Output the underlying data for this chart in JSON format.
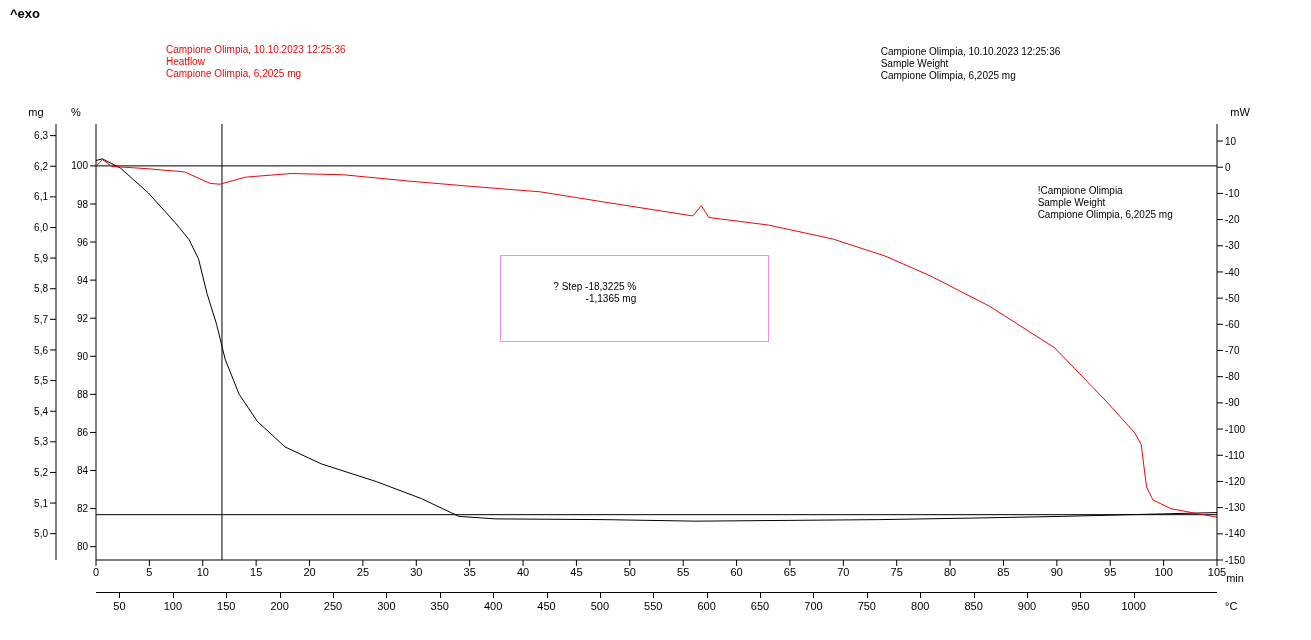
{
  "chart_data": {
    "type": "line",
    "annotations": [
      "^exo",
      "Campione Olimpia, 10.10.2023 12:25:36\nHeatflow\nCampione Olimpia, 6,2025 mg",
      "Campione Olimpia, 10.10.2023 12:25:36\nSample Weight\nCampione Olimpia, 6,2025 mg",
      "!Campione Olimpia\nSample Weight\nCampione Olimpia, 6,2025 mg",
      "? Step   -18,3225 %\n-1,1365 mg"
    ],
    "xlabel": "min",
    "x2label": "°C",
    "ylabel": "%",
    "y2label": "mW",
    "y3label": "mg",
    "xlim": [
      0,
      105
    ],
    "xticks": [
      0,
      5,
      10,
      15,
      20,
      25,
      30,
      35,
      40,
      45,
      50,
      55,
      60,
      65,
      70,
      75,
      80,
      85,
      90,
      95,
      100,
      105
    ],
    "x2lim": [
      28,
      1078
    ],
    "x2ticks": [
      50,
      100,
      150,
      200,
      250,
      300,
      350,
      400,
      450,
      500,
      550,
      600,
      650,
      700,
      750,
      800,
      850,
      900,
      950,
      1000
    ],
    "ylim": [
      79.3,
      102.2
    ],
    "yticks": [
      80,
      82,
      84,
      86,
      88,
      90,
      92,
      94,
      96,
      98,
      100
    ],
    "y2lim": [
      -150,
      16.5
    ],
    "y2ticks": [
      10,
      0,
      -10,
      -20,
      -30,
      -40,
      -50,
      -60,
      -70,
      -80,
      -90,
      -100,
      -110,
      -120,
      -130,
      -140,
      -150
    ],
    "y3lim": [
      4.914,
      6.338
    ],
    "y3ticks": [
      {
        "value": 5.0,
        "label": "5,0"
      },
      {
        "value": 5.1,
        "label": "5,1"
      },
      {
        "value": 5.2,
        "label": "5,2"
      },
      {
        "value": 5.3,
        "label": "5,3"
      },
      {
        "value": 5.4,
        "label": "5,4"
      },
      {
        "value": 5.5,
        "label": "5,5"
      },
      {
        "value": 5.6,
        "label": "5,6"
      },
      {
        "value": 5.7,
        "label": "5,7"
      },
      {
        "value": 5.8,
        "label": "5,8"
      },
      {
        "value": 5.9,
        "label": "5,9"
      },
      {
        "value": 6.0,
        "label": "6,0"
      },
      {
        "value": 6.1,
        "label": "6,1"
      },
      {
        "value": 6.2,
        "label": "6,2"
      },
      {
        "value": 6.3,
        "label": "6,3"
      }
    ],
    "ref_lines": [
      {
        "axis": "y",
        "value": 100,
        "color": "#000000"
      },
      {
        "axis": "y",
        "value": 81.68,
        "color": "#000000"
      },
      {
        "axis": "x",
        "value": 11.8,
        "color": "#000000"
      }
    ],
    "series": [
      {
        "color": "#000000",
        "axis": "y",
        "x": [
          0,
          0.6,
          2.3,
          4.9,
          7.4,
          8.7,
          9.6,
          10.4,
          11.3,
          12.1,
          13.4,
          15.1,
          17.7,
          21.1,
          26.3,
          30.5,
          34.0,
          37.4,
          47.6,
          56.2,
          64.8,
          73.3,
          81.9,
          90.4,
          99.0,
          105
        ],
        "values": [
          100.28,
          100.37,
          99.88,
          98.58,
          97.03,
          96.14,
          95.12,
          93.29,
          91.67,
          89.84,
          88.01,
          86.59,
          85.24,
          84.35,
          83.41,
          82.52,
          81.59,
          81.46,
          81.42,
          81.34,
          81.38,
          81.42,
          81.5,
          81.59,
          81.71,
          81.79
        ]
      },
      {
        "color": "#ff0000",
        "axis": "y2",
        "x": [
          0,
          0.6,
          1.5,
          4.9,
          8.3,
          10.7,
          11.6,
          14.0,
          18.3,
          23.2,
          29.3,
          35.4,
          41.6,
          47.6,
          55.9,
          56.7,
          57.4,
          63.0,
          69.0,
          73.9,
          78.2,
          83.7,
          89.8,
          94.7,
          97.3,
          97.9,
          98.4,
          99.0,
          100.7,
          103.3,
          105
        ],
        "values": [
          0.3,
          2.9,
          0.3,
          -0.6,
          -1.8,
          -6.2,
          -6.5,
          -3.8,
          -2.4,
          -2.9,
          -5.3,
          -7.4,
          -9.4,
          -13.3,
          -18.6,
          -14.7,
          -19.2,
          -22.1,
          -27.4,
          -33.9,
          -41.6,
          -53.1,
          -69.0,
          -89.7,
          -101.5,
          -105.9,
          -122.1,
          -127.1,
          -130.4,
          -132.4,
          -133.6
        ]
      }
    ]
  }
}
